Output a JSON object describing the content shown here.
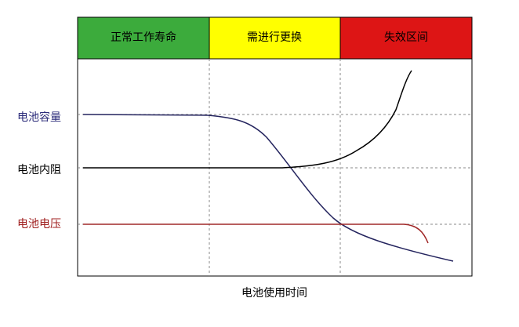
{
  "zones": [
    {
      "label": "正常工作寿命"
    },
    {
      "label": "需进行更换"
    },
    {
      "label": "失效区间"
    }
  ],
  "curves": [
    {
      "label": "电池容量"
    },
    {
      "label": "电池内阻"
    },
    {
      "label": "电池电压"
    }
  ],
  "x_axis_label": "电池使用时间"
}
